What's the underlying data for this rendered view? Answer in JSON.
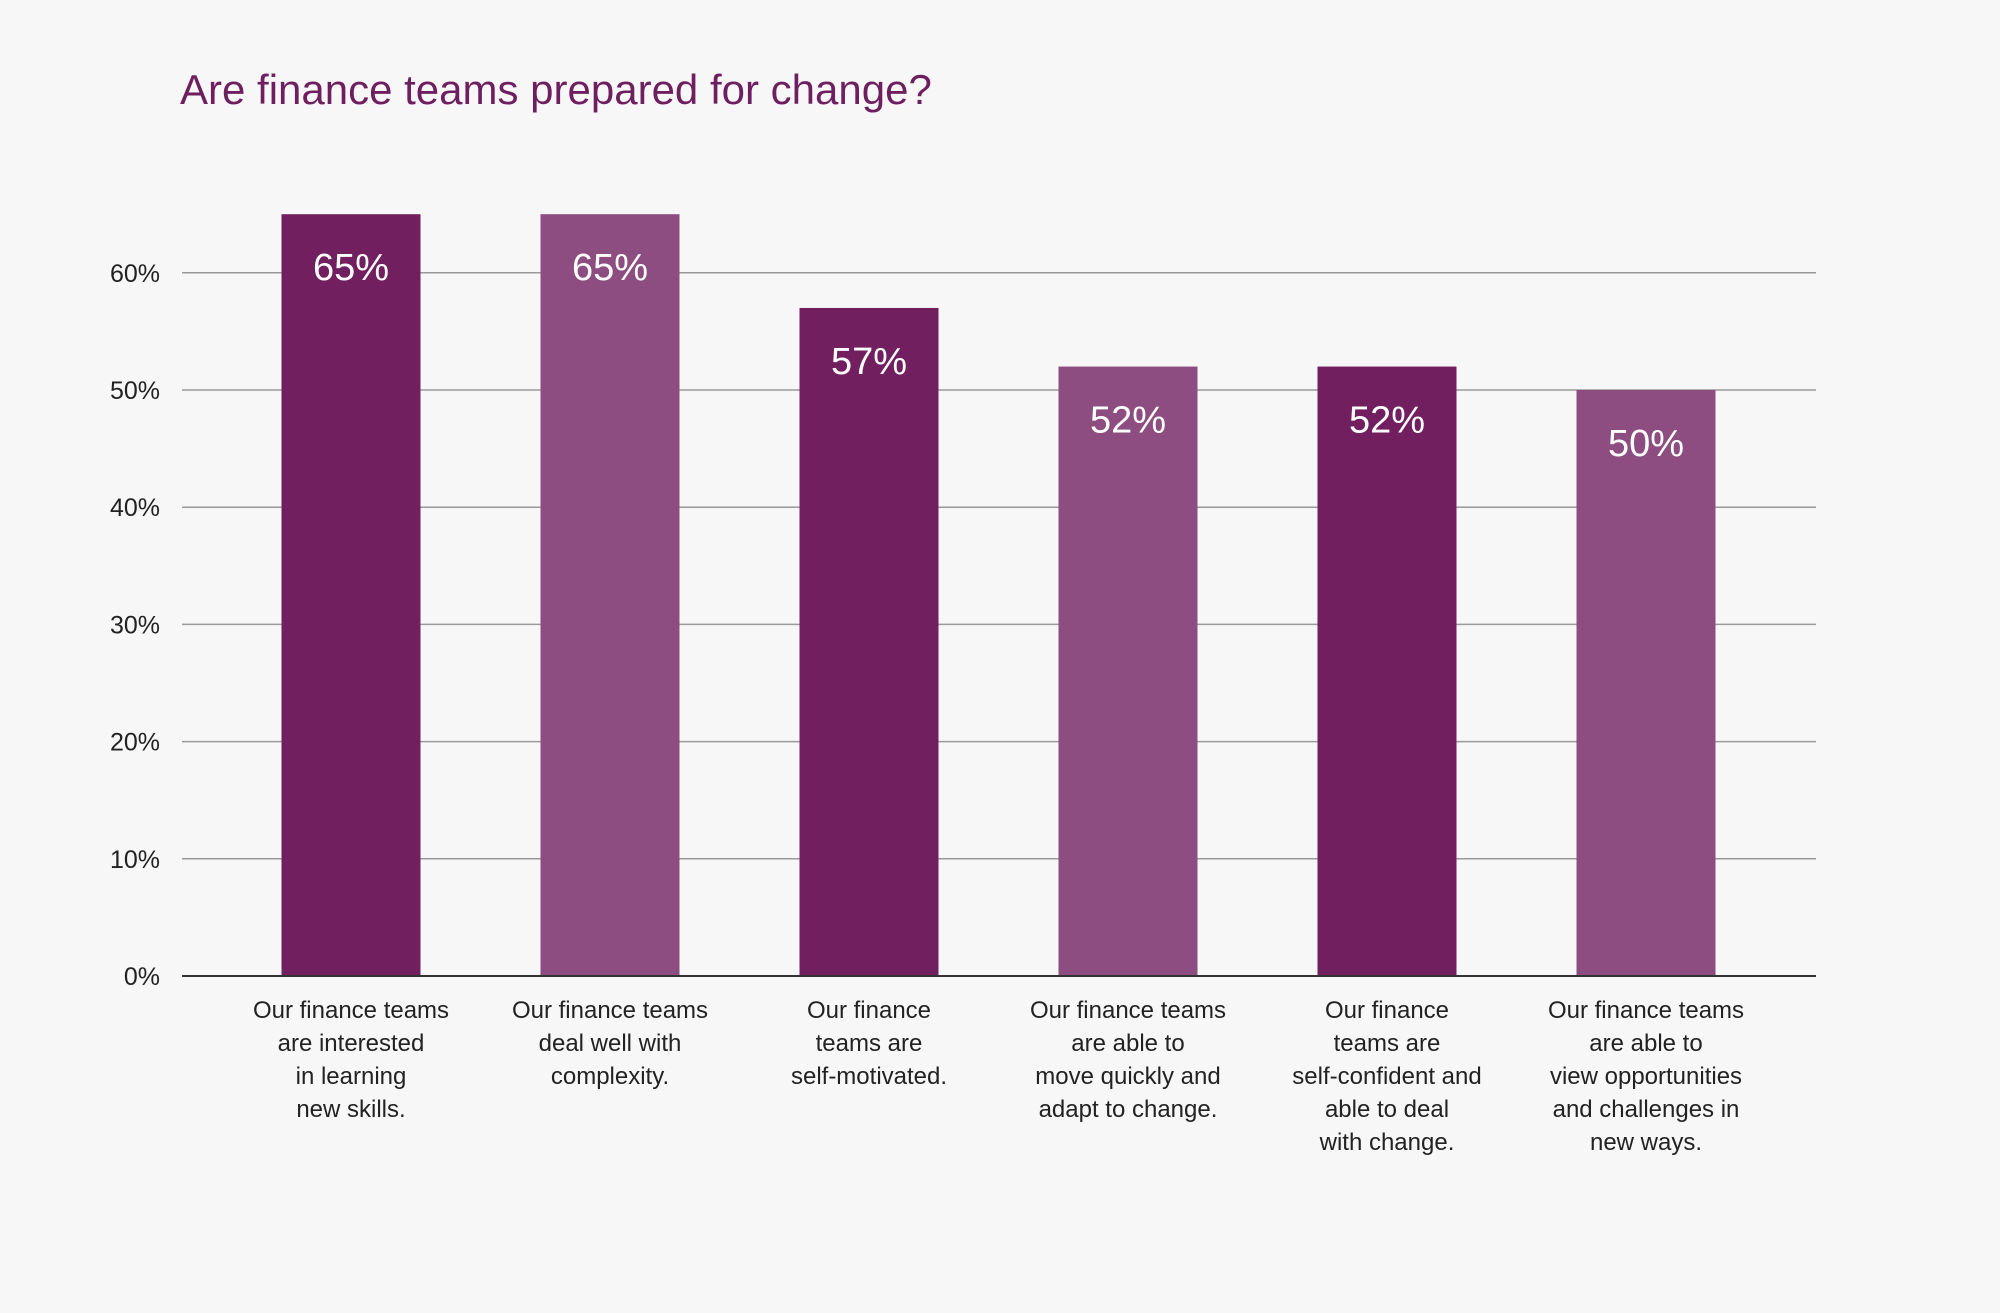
{
  "chart_data": {
    "type": "bar",
    "title": "Are finance teams prepared for change?",
    "xlabel": "",
    "ylabel": "",
    "ylim": [
      0,
      65
    ],
    "y_ticks": [
      "0%",
      "10%",
      "20%",
      "30%",
      "40%",
      "50%",
      "60%"
    ],
    "y_tick_values": [
      0,
      10,
      20,
      30,
      40,
      50,
      60
    ],
    "grid": true,
    "categories": [
      "Our finance teams\nare interested\nin learning\nnew skills.",
      "Our finance teams\ndeal well with\ncomplexity.",
      "Our finance\nteams are\nself-motivated.",
      "Our finance teams\nare able to\nmove quickly and\nadapt to change.",
      "Our finance\nteams are\nself-confident and\nable to deal\nwith change.",
      "Our finance teams\nare able to\nview opportunities\nand challenges in\nnew ways."
    ],
    "values": [
      65,
      65,
      57,
      52,
      52,
      50
    ],
    "data_labels": [
      "65%",
      "65%",
      "57%",
      "52%",
      "52%",
      "50%"
    ],
    "colors": [
      "#721f60",
      "#8e4d80",
      "#721f60",
      "#8e4d80",
      "#721f60",
      "#8e4d80"
    ]
  }
}
